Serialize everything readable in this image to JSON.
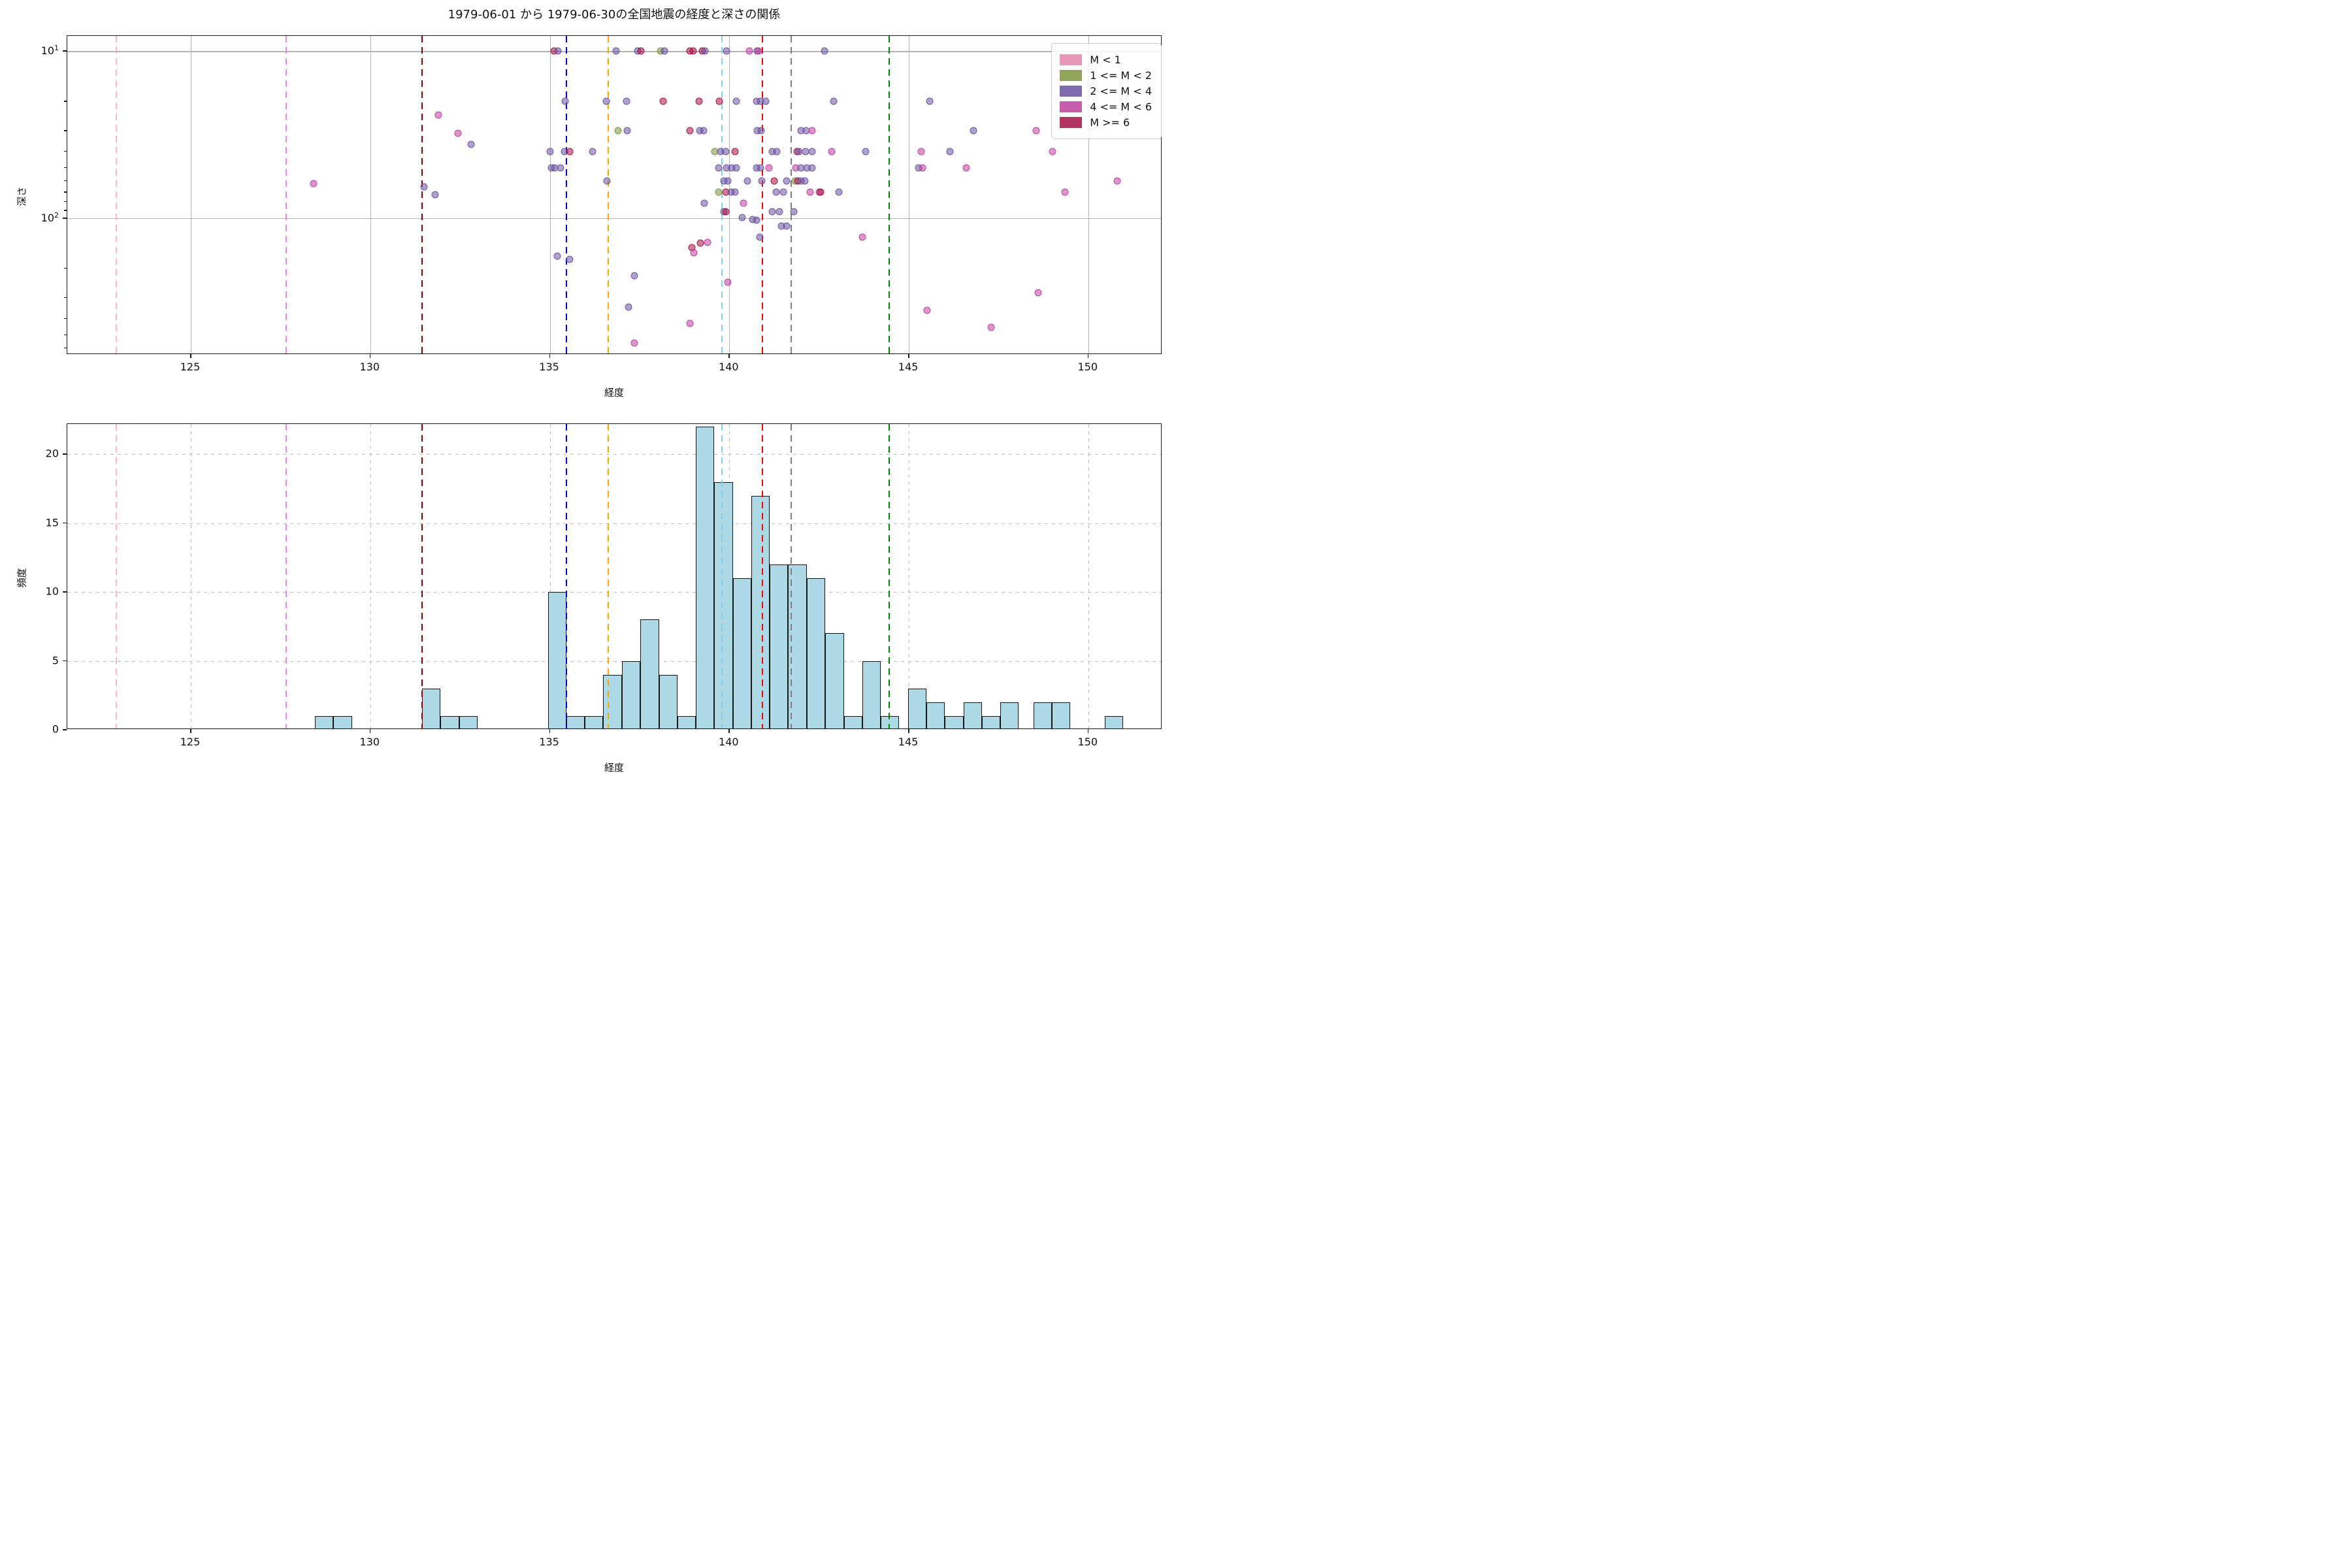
{
  "title": "1979-06-01 から 1979-06-30の全国地震の経度と深さの関係",
  "legend": {
    "items": [
      {
        "label": "M < 1",
        "color": "#e585ad"
      },
      {
        "label": "1 <= M < 2",
        "color": "#7e9440"
      },
      {
        "label": "2 <= M < 4",
        "color": "#6952a0"
      },
      {
        "label": "4 <= M < 6",
        "color": "#bb3f9e"
      },
      {
        "label": "M >= 6",
        "color": "#a51245"
      }
    ]
  },
  "palette": [
    "#e585ad",
    "#7e9440",
    "#6952a0",
    "#bb3f9e",
    "#a51245"
  ],
  "city_lines": [
    {
      "lon": 122.93,
      "color": "#ffb6c1"
    },
    {
      "lon": 127.66,
      "color": "#ee82ee"
    },
    {
      "lon": 131.44,
      "color": "#8b0000"
    },
    {
      "lon": 135.46,
      "color": "#0000cd"
    },
    {
      "lon": 136.63,
      "color": "#ffa500"
    },
    {
      "lon": 139.79,
      "color": "#87ceeb"
    },
    {
      "lon": 140.92,
      "color": "#ff0000"
    },
    {
      "lon": 141.72,
      "color": "#808080"
    },
    {
      "lon": 144.45,
      "color": "#008000"
    }
  ],
  "chart_data": [
    {
      "type": "scatter",
      "xlabel": "経度",
      "ylabel": "深さ",
      "xlim": [
        121.56,
        152.06
      ],
      "ylim": [
        8.1,
        657
      ],
      "yscale": "log-inverted",
      "xticks": [
        125,
        130,
        135,
        140,
        145,
        150
      ],
      "yticks": [
        {
          "value": 10,
          "base": "10",
          "exp": "1"
        },
        {
          "value": 100,
          "base": "10",
          "exp": "2"
        }
      ],
      "yticks_minor": [
        20,
        30,
        40,
        50,
        60,
        70,
        80,
        90,
        200,
        300,
        400,
        500,
        600
      ],
      "legend_entries": [
        "M < 1",
        "1 <= M < 2",
        "2 <= M < 4",
        "4 <= M < 6",
        "M >= 6"
      ],
      "points": [
        [
          135.12,
          10,
          4
        ],
        [
          135.22,
          10,
          2
        ],
        [
          136.84,
          10,
          2
        ],
        [
          137.45,
          10,
          2
        ],
        [
          137.53,
          10,
          4
        ],
        [
          138.08,
          10,
          1
        ],
        [
          138.2,
          10,
          2
        ],
        [
          138.9,
          10,
          4
        ],
        [
          139.0,
          10,
          4
        ],
        [
          139.25,
          10,
          4
        ],
        [
          139.33,
          10,
          2
        ],
        [
          139.93,
          10,
          2
        ],
        [
          140.55,
          10,
          3
        ],
        [
          140.77,
          10,
          2
        ],
        [
          140.82,
          10,
          3
        ],
        [
          142.66,
          10,
          2
        ],
        [
          135.43,
          20,
          2
        ],
        [
          136.58,
          20,
          2
        ],
        [
          137.14,
          20,
          2
        ],
        [
          138.15,
          20,
          4
        ],
        [
          139.15,
          20,
          4
        ],
        [
          139.72,
          20,
          4
        ],
        [
          140.2,
          20,
          2
        ],
        [
          140.75,
          20,
          2
        ],
        [
          140.86,
          20,
          2
        ],
        [
          141.02,
          20,
          2
        ],
        [
          142.9,
          20,
          2
        ],
        [
          145.58,
          20,
          2
        ],
        [
          131.9,
          24,
          3
        ],
        [
          132.45,
          31,
          3
        ],
        [
          132.8,
          36,
          2
        ],
        [
          136.9,
          30,
          1
        ],
        [
          137.15,
          30,
          2
        ],
        [
          138.9,
          30,
          4
        ],
        [
          139.18,
          30,
          2
        ],
        [
          139.28,
          30,
          2
        ],
        [
          140.78,
          30,
          2
        ],
        [
          140.88,
          30,
          2
        ],
        [
          142.0,
          30,
          2
        ],
        [
          142.15,
          30,
          2
        ],
        [
          142.3,
          30,
          3
        ],
        [
          146.8,
          30,
          2
        ],
        [
          148.55,
          30,
          3
        ],
        [
          135.0,
          40,
          2
        ],
        [
          135.4,
          40,
          2
        ],
        [
          135.56,
          40,
          4
        ],
        [
          136.2,
          40,
          2
        ],
        [
          139.6,
          40,
          1
        ],
        [
          139.75,
          40,
          2
        ],
        [
          139.9,
          40,
          2
        ],
        [
          140.15,
          40,
          4
        ],
        [
          141.2,
          40,
          2
        ],
        [
          141.32,
          40,
          2
        ],
        [
          141.88,
          40,
          4
        ],
        [
          141.95,
          40,
          2
        ],
        [
          142.12,
          40,
          2
        ],
        [
          142.3,
          40,
          2
        ],
        [
          142.85,
          40,
          3
        ],
        [
          143.8,
          40,
          2
        ],
        [
          145.35,
          40,
          3
        ],
        [
          146.15,
          40,
          2
        ],
        [
          149.0,
          40,
          3
        ],
        [
          135.05,
          50,
          2
        ],
        [
          135.14,
          50,
          2
        ],
        [
          135.3,
          50,
          2
        ],
        [
          139.7,
          50,
          2
        ],
        [
          139.92,
          50,
          2
        ],
        [
          140.06,
          50,
          2
        ],
        [
          140.2,
          50,
          2
        ],
        [
          140.75,
          50,
          2
        ],
        [
          140.86,
          50,
          2
        ],
        [
          141.1,
          50,
          3
        ],
        [
          141.85,
          50,
          3
        ],
        [
          142.0,
          50,
          2
        ],
        [
          142.16,
          50,
          2
        ],
        [
          142.3,
          50,
          2
        ],
        [
          145.28,
          50,
          2
        ],
        [
          145.38,
          50,
          3
        ],
        [
          146.6,
          50,
          3
        ],
        [
          128.42,
          62,
          3
        ],
        [
          131.5,
          65,
          2
        ],
        [
          136.6,
          60,
          2
        ],
        [
          139.85,
          60,
          2
        ],
        [
          139.96,
          60,
          2
        ],
        [
          140.5,
          60,
          2
        ],
        [
          140.9,
          60,
          2
        ],
        [
          141.25,
          60,
          4
        ],
        [
          141.6,
          60,
          2
        ],
        [
          141.83,
          60,
          1
        ],
        [
          141.9,
          60,
          4
        ],
        [
          142.0,
          60,
          2
        ],
        [
          142.1,
          60,
          2
        ],
        [
          150.8,
          60,
          3
        ],
        [
          131.8,
          72,
          2
        ],
        [
          139.7,
          70,
          1
        ],
        [
          139.9,
          70,
          4
        ],
        [
          140.05,
          70,
          2
        ],
        [
          140.16,
          70,
          2
        ],
        [
          141.3,
          70,
          2
        ],
        [
          141.5,
          70,
          2
        ],
        [
          142.25,
          70,
          3
        ],
        [
          142.5,
          70,
          3
        ],
        [
          142.55,
          70,
          4
        ],
        [
          143.05,
          70,
          2
        ],
        [
          149.35,
          70,
          3
        ],
        [
          139.3,
          81,
          2
        ],
        [
          140.4,
          81,
          3
        ],
        [
          139.84,
          91,
          2
        ],
        [
          139.9,
          91,
          4
        ],
        [
          141.2,
          91,
          2
        ],
        [
          141.4,
          91,
          2
        ],
        [
          141.8,
          91,
          2
        ],
        [
          140.35,
          99,
          2
        ],
        [
          140.65,
          102,
          2
        ],
        [
          140.76,
          103,
          2
        ],
        [
          141.45,
          111,
          2
        ],
        [
          141.6,
          111,
          2
        ],
        [
          140.85,
          130,
          2
        ],
        [
          143.7,
          130,
          3
        ],
        [
          139.2,
          141,
          4
        ],
        [
          139.4,
          140,
          3
        ],
        [
          138.95,
          150,
          4
        ],
        [
          139.02,
          161,
          3
        ],
        [
          135.2,
          168,
          2
        ],
        [
          135.56,
          176,
          2
        ],
        [
          137.35,
          220,
          2
        ],
        [
          139.95,
          241,
          3
        ],
        [
          148.6,
          280,
          3
        ],
        [
          137.2,
          340,
          2
        ],
        [
          145.5,
          355,
          3
        ],
        [
          138.9,
          425,
          3
        ],
        [
          147.3,
          450,
          3
        ],
        [
          137.35,
          560,
          3
        ]
      ]
    },
    {
      "type": "histogram",
      "xlabel": "経度",
      "ylabel": "頻度",
      "xlim": [
        121.56,
        152.06
      ],
      "ylim": [
        0,
        22.2
      ],
      "xticks": [
        125,
        130,
        135,
        140,
        145,
        150
      ],
      "yticks": [
        0,
        5,
        10,
        15,
        20
      ],
      "bar_color": "#add8e6",
      "bar_edge": "#141414",
      "bars": [
        [
          128.46,
          128.97,
          1
        ],
        [
          128.97,
          129.49,
          1
        ],
        [
          131.44,
          131.95,
          3
        ],
        [
          131.95,
          132.47,
          1
        ],
        [
          132.47,
          132.98,
          1
        ],
        [
          134.95,
          135.46,
          10
        ],
        [
          135.46,
          135.98,
          1
        ],
        [
          135.98,
          136.49,
          1
        ],
        [
          136.49,
          137.01,
          4
        ],
        [
          137.01,
          137.52,
          5
        ],
        [
          137.52,
          138.04,
          8
        ],
        [
          138.04,
          138.55,
          4
        ],
        [
          138.55,
          139.07,
          1
        ],
        [
          139.07,
          139.58,
          22
        ],
        [
          139.58,
          140.1,
          18
        ],
        [
          140.1,
          140.61,
          11
        ],
        [
          140.61,
          141.13,
          17
        ],
        [
          141.13,
          141.64,
          12
        ],
        [
          141.64,
          142.16,
          12
        ],
        [
          142.16,
          142.67,
          11
        ],
        [
          142.67,
          143.19,
          7
        ],
        [
          143.19,
          143.7,
          1
        ],
        [
          143.7,
          144.21,
          5
        ],
        [
          144.21,
          144.72,
          1
        ],
        [
          144.98,
          145.49,
          3
        ],
        [
          145.49,
          146.0,
          2
        ],
        [
          146.0,
          146.52,
          1
        ],
        [
          146.52,
          147.03,
          2
        ],
        [
          147.03,
          147.55,
          1
        ],
        [
          147.55,
          148.06,
          2
        ],
        [
          148.47,
          148.98,
          2
        ],
        [
          148.98,
          149.5,
          2
        ],
        [
          150.46,
          150.97,
          1
        ]
      ]
    }
  ]
}
